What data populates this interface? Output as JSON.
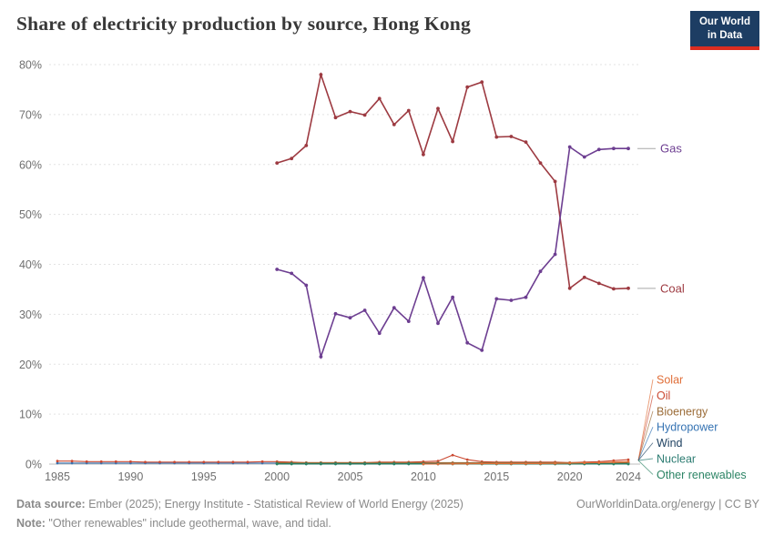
{
  "header": {
    "title": "Share of electricity production by source, Hong Kong",
    "logo": {
      "line1": "Our World",
      "line2": "in Data"
    }
  },
  "footer": {
    "source_label": "Data source:",
    "source_text": " Ember (2025); Energy Institute - Statistical Review of World Energy (2025)",
    "note_label": "Note:",
    "note_text": " \"Other renewables\" include geothermal, wave, and tidal.",
    "credit": "OurWorldinData.org/energy | CC BY"
  },
  "chart_data": {
    "type": "line",
    "title": "Share of electricity production by source, Hong Kong",
    "xlabel": "",
    "ylabel": "",
    "ylim": [
      0,
      80
    ],
    "x_range": [
      1985,
      2024
    ],
    "grid": true,
    "legend_position": "right",
    "y_tick_suffix": "%",
    "y_ticks": [
      0,
      10,
      20,
      30,
      40,
      50,
      60,
      70,
      80
    ],
    "x_ticks": [
      1985,
      1990,
      1995,
      2000,
      2005,
      2010,
      2015,
      2020,
      2024
    ],
    "direct_labels": [
      "Gas",
      "Coal"
    ],
    "legend_stack": [
      "Solar",
      "Oil",
      "Bioenergy",
      "Hydropower",
      "Wind",
      "Nuclear",
      "Other renewables"
    ],
    "series": [
      {
        "name": "Hydropower",
        "color": "#3573b3",
        "major": false,
        "start_year": 1985,
        "values": [
          0.2,
          0.2,
          0.2,
          0.2,
          0.2,
          0.2,
          0.2,
          0.2,
          0.2,
          0.2,
          0.2,
          0.2,
          0.2,
          0.2,
          0.2,
          0.2,
          0.2,
          0.2,
          0.2,
          0.2,
          0.2,
          0.2,
          0.2,
          0.2,
          0.2,
          0.2,
          0.2,
          0.2,
          0.2,
          0.2,
          0.2,
          0.2,
          0.2,
          0.2,
          0.2,
          0.2,
          0.2,
          0.2,
          0.2,
          0.2
        ]
      },
      {
        "name": "Oil",
        "color": "#cb4a33",
        "major": false,
        "start_year": 1985,
        "values": [
          0.6,
          0.6,
          0.5,
          0.5,
          0.5,
          0.5,
          0.4,
          0.4,
          0.4,
          0.4,
          0.4,
          0.4,
          0.4,
          0.4,
          0.5,
          0.5,
          0.4,
          0.3,
          0.3,
          0.3,
          0.3,
          0.3,
          0.4,
          0.4,
          0.4,
          0.5,
          0.6,
          1.8,
          0.9,
          0.5,
          0.4,
          0.4,
          0.4,
          0.4,
          0.4,
          0.3,
          0.4,
          0.5,
          0.7,
          0.9
        ]
      },
      {
        "name": "Bioenergy",
        "color": "#9c6d39",
        "major": false,
        "start_year": 2000,
        "values": [
          0.3,
          0.3,
          0.3,
          0.3,
          0.3,
          0.3,
          0.3,
          0.3,
          0.3,
          0.3,
          0.3,
          0.3,
          0.3,
          0.3,
          0.3,
          0.3,
          0.3,
          0.3,
          0.3,
          0.3,
          0.3,
          0.3,
          0.3,
          0.3,
          0.3
        ]
      },
      {
        "name": "Wind",
        "color": "#1c3f5f",
        "major": false,
        "start_year": 2000,
        "values": [
          0.1,
          0.1,
          0.1,
          0.1,
          0.1,
          0.1,
          0.1,
          0.1,
          0.1,
          0.1,
          0.1,
          0.1,
          0.1,
          0.1,
          0.1,
          0.1,
          0.1,
          0.1,
          0.1,
          0.1,
          0.1,
          0.1,
          0.1,
          0.1,
          0.1
        ]
      },
      {
        "name": "Nuclear",
        "color": "#2e7d73",
        "major": false,
        "start_year": 2000,
        "values": [
          0.0,
          0.0,
          0.0,
          0.0,
          0.0,
          0.0,
          0.0,
          0.0,
          0.0,
          0.0,
          0.0,
          0.0,
          0.0,
          0.0,
          0.0,
          0.0,
          0.0,
          0.0,
          0.0,
          0.0,
          0.0,
          0.0,
          0.0,
          0.0,
          0.0
        ]
      },
      {
        "name": "Other renewables",
        "color": "#2c8465",
        "major": false,
        "start_year": 2000,
        "values": [
          0.05,
          0.05,
          0.05,
          0.05,
          0.05,
          0.05,
          0.05,
          0.05,
          0.05,
          0.05,
          0.05,
          0.05,
          0.05,
          0.05,
          0.05,
          0.05,
          0.05,
          0.05,
          0.05,
          0.05,
          0.05,
          0.05,
          0.05,
          0.05,
          0.05
        ]
      },
      {
        "name": "Solar",
        "color": "#e06e38",
        "major": false,
        "start_year": 2010,
        "values": [
          0.0,
          0.0,
          0.05,
          0.05,
          0.1,
          0.1,
          0.1,
          0.1,
          0.1,
          0.15,
          0.2,
          0.25,
          0.3,
          0.4,
          0.5
        ]
      },
      {
        "name": "Coal",
        "color": "#9d3a41",
        "major": true,
        "start_year": 2000,
        "values": [
          60.3,
          61.2,
          63.8,
          78.0,
          69.4,
          70.6,
          69.9,
          73.2,
          68.0,
          70.8,
          62.0,
          71.2,
          64.6,
          75.5,
          76.5,
          65.5,
          65.6,
          64.5,
          60.3,
          56.6,
          35.2,
          37.4,
          36.2,
          35.1,
          35.2
        ]
      },
      {
        "name": "Gas",
        "color": "#6d3e91",
        "major": true,
        "start_year": 2000,
        "values": [
          39.0,
          38.2,
          35.8,
          21.5,
          30.1,
          29.3,
          30.8,
          26.2,
          31.3,
          28.6,
          37.3,
          28.2,
          33.4,
          24.3,
          22.8,
          33.1,
          32.8,
          33.4,
          38.6,
          42.0,
          63.5,
          61.5,
          63.0,
          63.2,
          63.2
        ]
      }
    ]
  }
}
